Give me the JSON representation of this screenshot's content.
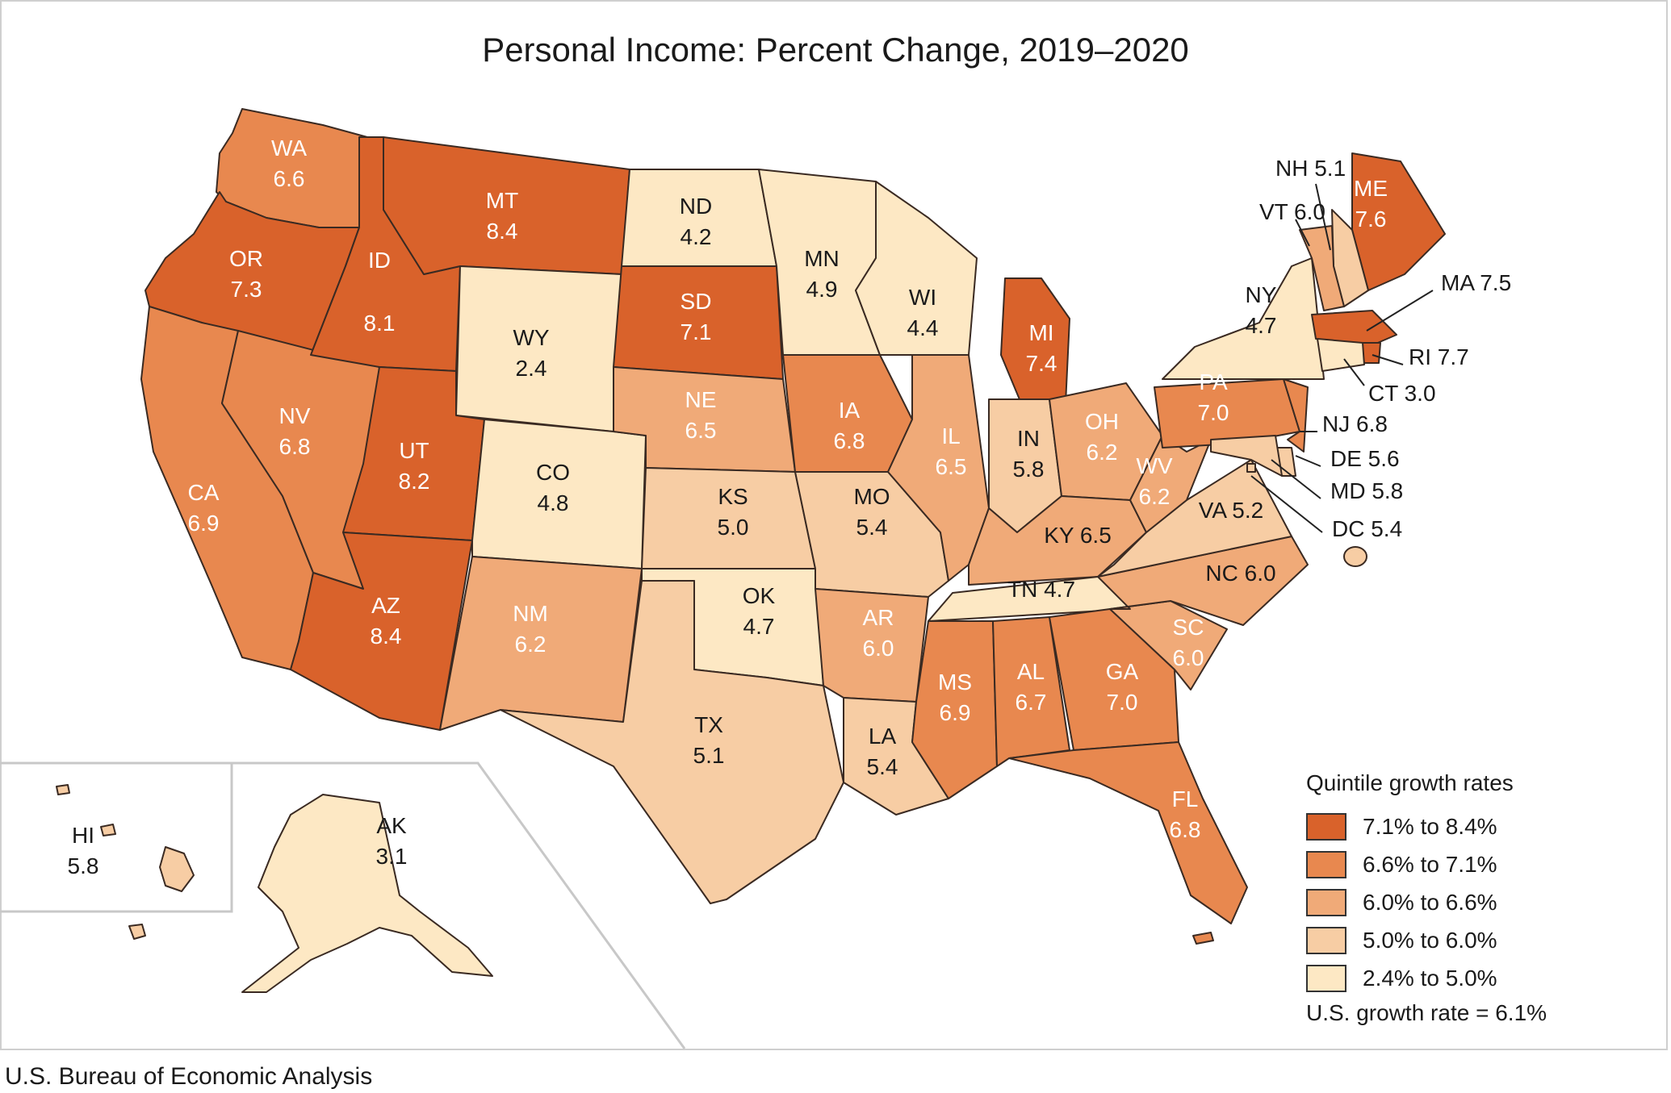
{
  "title": "Personal Income: Percent Change, 2019–2020",
  "source": "U.S. Bureau of Economic Analysis",
  "colors": {
    "q1": "#d9622b",
    "q2": "#e8884f",
    "q3": "#f0aa78",
    "q4": "#f7cda4",
    "q5": "#fde8c4",
    "border": "#3a2a22"
  },
  "legend": {
    "title": "Quintile growth rates",
    "items": [
      {
        "label": "7.1% to 8.4%",
        "color": "#d9622b"
      },
      {
        "label": "6.6% to 7.1%",
        "color": "#e8884f"
      },
      {
        "label": "6.0% to 6.6%",
        "color": "#f0aa78"
      },
      {
        "label": "5.0% to 6.0%",
        "color": "#f7cda4"
      },
      {
        "label": "2.4% to 5.0%",
        "color": "#fde8c4"
      }
    ],
    "us_rate": "U.S. growth rate = 6.1%"
  },
  "states": [
    {
      "abbr": "WA",
      "value": "6.6"
    },
    {
      "abbr": "OR",
      "value": "7.3"
    },
    {
      "abbr": "CA",
      "value": "6.9"
    },
    {
      "abbr": "NV",
      "value": "6.8"
    },
    {
      "abbr": "ID",
      "value": "8.1"
    },
    {
      "abbr": "MT",
      "value": "8.4"
    },
    {
      "abbr": "WY",
      "value": "2.4"
    },
    {
      "abbr": "UT",
      "value": "8.2"
    },
    {
      "abbr": "AZ",
      "value": "8.4"
    },
    {
      "abbr": "CO",
      "value": "4.8"
    },
    {
      "abbr": "NM",
      "value": "6.2"
    },
    {
      "abbr": "ND",
      "value": "4.2"
    },
    {
      "abbr": "SD",
      "value": "7.1"
    },
    {
      "abbr": "NE",
      "value": "6.5"
    },
    {
      "abbr": "KS",
      "value": "5.0"
    },
    {
      "abbr": "OK",
      "value": "4.7"
    },
    {
      "abbr": "TX",
      "value": "5.1"
    },
    {
      "abbr": "MN",
      "value": "4.9"
    },
    {
      "abbr": "IA",
      "value": "6.8"
    },
    {
      "abbr": "MO",
      "value": "5.4"
    },
    {
      "abbr": "AR",
      "value": "6.0"
    },
    {
      "abbr": "LA",
      "value": "5.4"
    },
    {
      "abbr": "WI",
      "value": "4.4"
    },
    {
      "abbr": "IL",
      "value": "6.5"
    },
    {
      "abbr": "MI",
      "value": "7.4"
    },
    {
      "abbr": "IN",
      "value": "5.8"
    },
    {
      "abbr": "OH",
      "value": "6.2"
    },
    {
      "abbr": "KY",
      "value": "6.5"
    },
    {
      "abbr": "TN",
      "value": "4.7"
    },
    {
      "abbr": "MS",
      "value": "6.9"
    },
    {
      "abbr": "AL",
      "value": "6.7"
    },
    {
      "abbr": "GA",
      "value": "7.0"
    },
    {
      "abbr": "FL",
      "value": "6.8"
    },
    {
      "abbr": "SC",
      "value": "6.0"
    },
    {
      "abbr": "NC",
      "value": "6.0"
    },
    {
      "abbr": "VA",
      "value": "5.2"
    },
    {
      "abbr": "WV",
      "value": "6.2"
    },
    {
      "abbr": "PA",
      "value": "7.0"
    },
    {
      "abbr": "NY",
      "value": "4.7"
    },
    {
      "abbr": "ME",
      "value": "7.6"
    },
    {
      "abbr": "NH",
      "value": "5.1"
    },
    {
      "abbr": "VT",
      "value": "6.0"
    },
    {
      "abbr": "MA",
      "value": "7.5"
    },
    {
      "abbr": "RI",
      "value": "7.7"
    },
    {
      "abbr": "CT",
      "value": "3.0"
    },
    {
      "abbr": "NJ",
      "value": "6.8"
    },
    {
      "abbr": "DE",
      "value": "5.6"
    },
    {
      "abbr": "MD",
      "value": "5.8"
    },
    {
      "abbr": "DC",
      "value": "5.4"
    },
    {
      "abbr": "AK",
      "value": "3.1"
    },
    {
      "abbr": "HI",
      "value": "5.8"
    }
  ]
}
